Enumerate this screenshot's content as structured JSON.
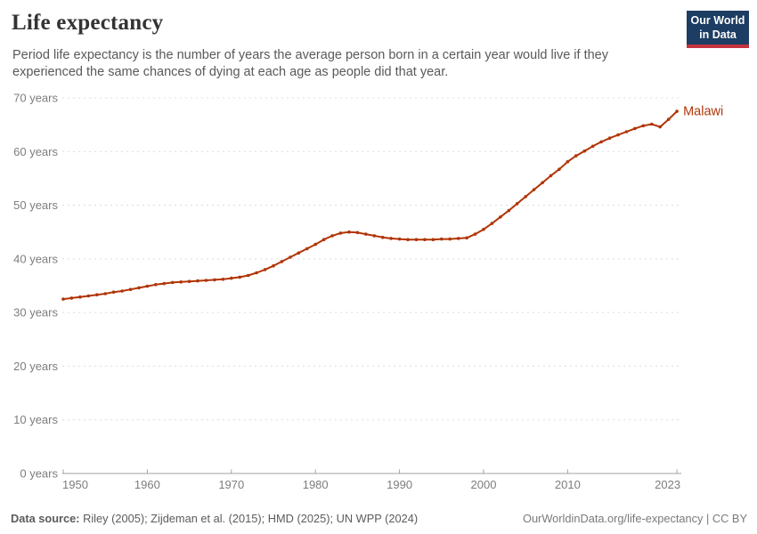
{
  "header": {
    "title": "Life expectancy",
    "subtitle": "Period life expectancy is the number of years the average person born in a certain year would live if they experienced the same chances of dying at each age as people did that year.",
    "logo": {
      "line1": "Our World",
      "line2": "in Data",
      "bg_color": "#1d3d63",
      "stripe_color": "#c5323f"
    }
  },
  "chart_data": {
    "type": "line",
    "title": "Life expectancy",
    "xlabel": "",
    "ylabel": "",
    "ylim": [
      0,
      70
    ],
    "yticks": [
      0,
      10,
      20,
      30,
      40,
      50,
      60,
      70
    ],
    "ytick_suffix": " years",
    "xticks": [
      1950,
      1960,
      1970,
      1980,
      1990,
      2000,
      2010,
      2023
    ],
    "xlim": [
      1950,
      2023
    ],
    "grid": "horizontal-dashed",
    "grid_color": "#dcdcdc",
    "axis_color": "#a1a1a1",
    "tick_label_color": "#7d7d7d",
    "legend_position": "end-of-line",
    "series": [
      {
        "name": "Malawi",
        "color": "#b13507",
        "x": [
          1950,
          1951,
          1952,
          1953,
          1954,
          1955,
          1956,
          1957,
          1958,
          1959,
          1960,
          1961,
          1962,
          1963,
          1964,
          1965,
          1966,
          1967,
          1968,
          1969,
          1970,
          1971,
          1972,
          1973,
          1974,
          1975,
          1976,
          1977,
          1978,
          1979,
          1980,
          1981,
          1982,
          1983,
          1984,
          1985,
          1986,
          1987,
          1988,
          1989,
          1990,
          1991,
          1992,
          1993,
          1994,
          1995,
          1996,
          1997,
          1998,
          1999,
          2000,
          2001,
          2002,
          2003,
          2004,
          2005,
          2006,
          2007,
          2008,
          2009,
          2010,
          2011,
          2012,
          2013,
          2014,
          2015,
          2016,
          2017,
          2018,
          2019,
          2020,
          2021,
          2022,
          2023
        ],
        "values": [
          32.5,
          32.7,
          32.9,
          33.1,
          33.3,
          33.5,
          33.8,
          34.0,
          34.3,
          34.6,
          34.9,
          35.2,
          35.4,
          35.6,
          35.7,
          35.8,
          35.9,
          36.0,
          36.1,
          36.2,
          36.4,
          36.6,
          36.9,
          37.4,
          38.0,
          38.7,
          39.5,
          40.3,
          41.1,
          41.9,
          42.7,
          43.6,
          44.3,
          44.8,
          45.0,
          44.9,
          44.6,
          44.3,
          44.0,
          43.8,
          43.7,
          43.6,
          43.6,
          43.6,
          43.6,
          43.7,
          43.7,
          43.8,
          43.9,
          44.6,
          45.5,
          46.6,
          47.8,
          49.0,
          50.3,
          51.6,
          52.9,
          54.2,
          55.5,
          56.7,
          58.1,
          59.2,
          60.1,
          61.0,
          61.8,
          62.5,
          63.1,
          63.7,
          64.3,
          64.8,
          65.1,
          64.6,
          66.0,
          67.5
        ]
      }
    ]
  },
  "footer": {
    "datasource_label": "Data source:",
    "datasource_value": " Riley (2005); Zijdeman et al. (2015); HMD (2025); UN WPP (2024)",
    "link": "OurWorldinData.org/life-expectancy | CC BY"
  }
}
